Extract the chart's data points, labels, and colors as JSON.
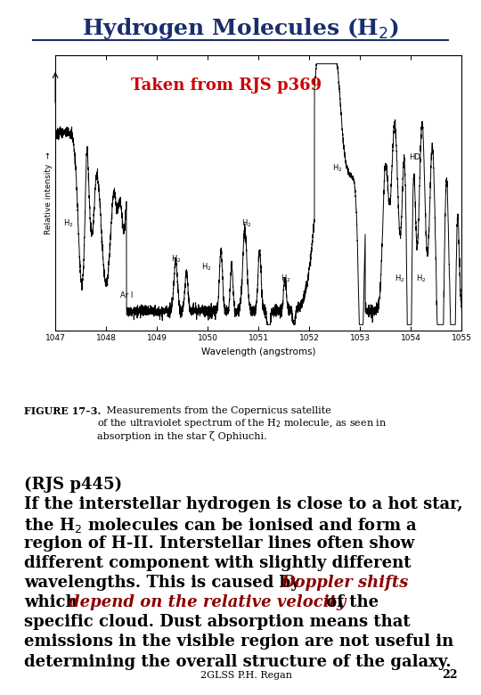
{
  "title_color": "#1a2e6e",
  "title_fontsize": 18,
  "subtitle": "Taken from RJS p369",
  "subtitle_color": "#cc0000",
  "subtitle_fontsize": 13,
  "footer": "2GLSS P.H. Regan",
  "page_number": "22",
  "background_color": "#ffffff",
  "body_fontsize": 13,
  "caption_fontsize": 8.5,
  "dark_red": "#8b0000"
}
